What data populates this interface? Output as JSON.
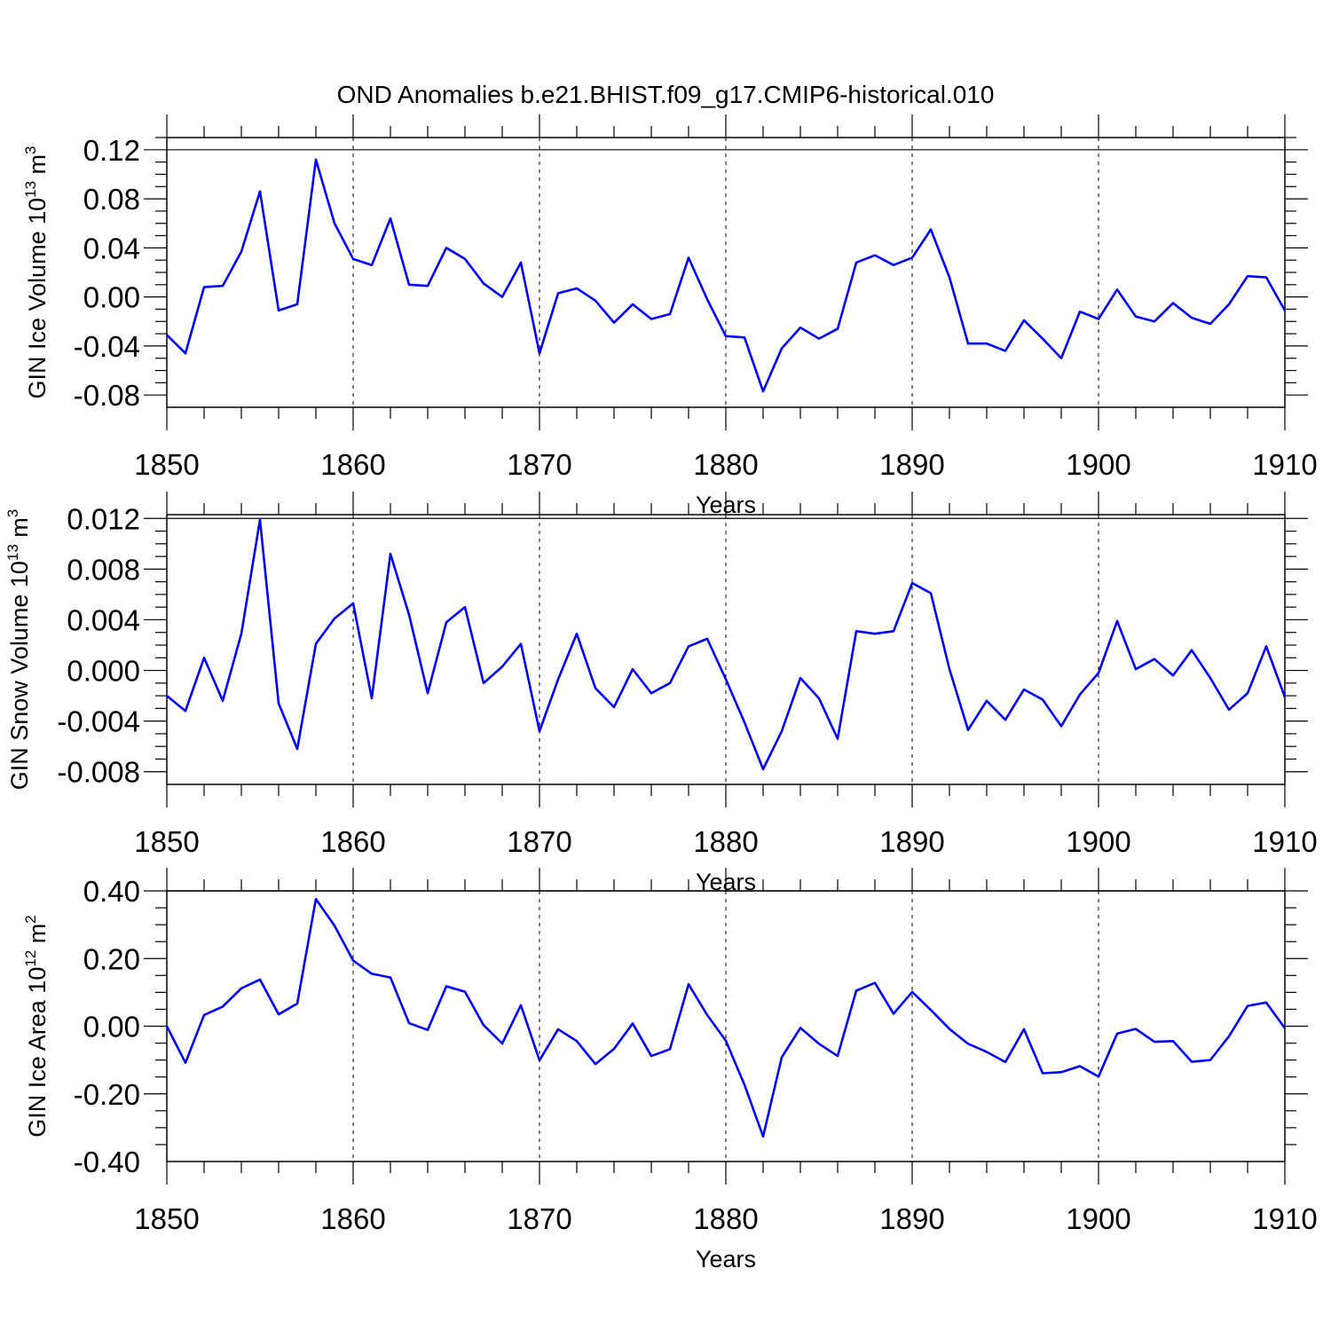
{
  "title": "OND Anomalies b.e21.BHIST.f09_g17.CMIP6-historical.010",
  "colors": {
    "line": "#0000ff",
    "axis": "#000000",
    "background": "#ffffff"
  },
  "chart_data": [
    {
      "type": "line",
      "xlabel": "Years",
      "ylabel": {
        "prefix": "GIN Ice Volume 10",
        "exp1": "13",
        "mid": " m",
        "exp2": "3"
      },
      "xlim": [
        1850,
        1910
      ],
      "ylim": [
        -0.09,
        0.13
      ],
      "x_ticks": [
        "1850",
        "1860",
        "1870",
        "1880",
        "1890",
        "1900",
        "1910"
      ],
      "y_ticks": [
        "-0.08",
        "-0.04",
        "0.00",
        "0.04",
        "0.08",
        "0.12"
      ],
      "grid": "dashed vertical at major x ticks",
      "x_start": 1850,
      "values": [
        -0.031,
        -0.046,
        0.008,
        0.009,
        0.037,
        0.086,
        -0.011,
        -0.006,
        0.112,
        0.06,
        0.031,
        0.026,
        0.064,
        0.01,
        0.009,
        0.04,
        0.031,
        0.011,
        0.0,
        0.028,
        -0.046,
        0.003,
        0.007,
        -0.003,
        -0.021,
        -0.006,
        -0.018,
        -0.014,
        0.032,
        -0.002,
        -0.032,
        -0.033,
        -0.077,
        -0.042,
        -0.025,
        -0.034,
        -0.026,
        0.028,
        0.034,
        0.026,
        0.032,
        0.055,
        0.016,
        -0.038,
        -0.038,
        -0.044,
        -0.019,
        -0.034,
        -0.05,
        -0.012,
        -0.018,
        0.006,
        -0.016,
        -0.02,
        -0.005,
        -0.017,
        -0.022,
        -0.006,
        0.017,
        0.016,
        -0.011
      ]
    },
    {
      "type": "line",
      "xlabel": "Years",
      "ylabel": {
        "prefix": "GIN Snow Volume 10",
        "exp1": "13",
        "mid": " m",
        "exp2": "3"
      },
      "xlim": [
        1850,
        1910
      ],
      "ylim": [
        -0.009,
        0.0123
      ],
      "x_ticks": [
        "1850",
        "1860",
        "1870",
        "1880",
        "1890",
        "1900",
        "1910"
      ],
      "y_ticks": [
        "-0.008",
        "-0.004",
        "0.000",
        "0.004",
        "0.008",
        "0.012"
      ],
      "grid": "dashed vertical at major x ticks",
      "x_start": 1850,
      "values": [
        -0.002,
        -0.0032,
        0.001,
        -0.0024,
        0.0029,
        0.0119,
        -0.0026,
        -0.0062,
        0.0021,
        0.0041,
        0.0053,
        -0.0022,
        0.0092,
        0.0044,
        -0.0018,
        0.0038,
        0.005,
        -0.001,
        0.0003,
        0.0021,
        -0.0048,
        -0.0007,
        0.0029,
        -0.0014,
        -0.0029,
        0.0001,
        -0.0018,
        -0.001,
        0.0019,
        0.0025,
        -0.0007,
        -0.0041,
        -0.0078,
        -0.0048,
        -0.0006,
        -0.0022,
        -0.0054,
        0.0031,
        0.0029,
        0.0031,
        0.0069,
        0.0061,
        0.0001,
        -0.0047,
        -0.0024,
        -0.0039,
        -0.0015,
        -0.0023,
        -0.0044,
        -0.0019,
        -0.0002,
        0.0039,
        0.0001,
        0.0009,
        -0.0004,
        0.0016,
        -0.0006,
        -0.0031,
        -0.0018,
        0.0019,
        -0.0021
      ]
    },
    {
      "type": "line",
      "xlabel": "Years",
      "ylabel": {
        "prefix": "GIN Ice Area 10",
        "exp1": "12",
        "mid": " m",
        "exp2": "2"
      },
      "xlim": [
        1850,
        1910
      ],
      "ylim": [
        -0.4,
        0.4
      ],
      "x_ticks": [
        "1850",
        "1860",
        "1870",
        "1880",
        "1890",
        "1900",
        "1910"
      ],
      "y_ticks": [
        "-0.40",
        "-0.20",
        "0.00",
        "0.20",
        "0.40"
      ],
      "grid": "dashed vertical at major x ticks",
      "x_start": 1850,
      "values": [
        0.0,
        -0.108,
        0.033,
        0.058,
        0.112,
        0.138,
        0.035,
        0.067,
        0.376,
        0.297,
        0.194,
        0.155,
        0.144,
        0.009,
        -0.011,
        0.118,
        0.102,
        0.003,
        -0.051,
        0.062,
        -0.101,
        -0.009,
        -0.044,
        -0.112,
        -0.067,
        0.008,
        -0.088,
        -0.068,
        0.124,
        0.033,
        -0.043,
        -0.173,
        -0.326,
        -0.092,
        -0.005,
        -0.052,
        -0.088,
        0.105,
        0.128,
        0.037,
        0.101,
        0.048,
        -0.008,
        -0.052,
        -0.076,
        -0.106,
        -0.009,
        -0.139,
        -0.136,
        -0.118,
        -0.149,
        -0.022,
        -0.008,
        -0.046,
        -0.044,
        -0.105,
        -0.1,
        -0.03,
        0.06,
        0.07,
        -0.006
      ]
    }
  ]
}
